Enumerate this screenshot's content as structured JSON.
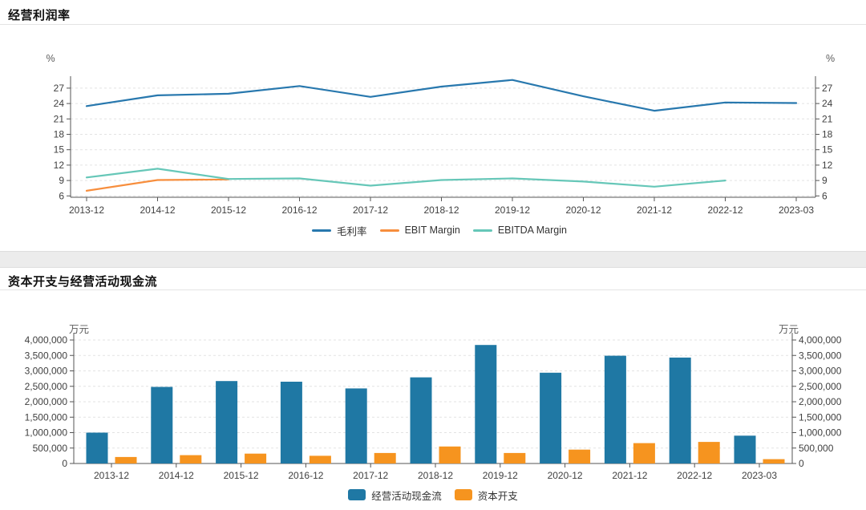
{
  "chart_data": [
    {
      "type": "line",
      "title": "经营利润率",
      "unit_left": "%",
      "unit_right": "%",
      "categories": [
        "2013-12",
        "2014-12",
        "2015-12",
        "2016-12",
        "2017-12",
        "2018-12",
        "2019-12",
        "2020-12",
        "2021-12",
        "2022-12",
        "2023-03"
      ],
      "series": [
        {
          "key": "gross-margin",
          "name": "毛利率",
          "color": "#2878ae",
          "values": [
            23.5,
            25.6,
            25.9,
            27.4,
            25.3,
            27.3,
            28.6,
            25.4,
            22.6,
            24.2,
            24.1
          ]
        },
        {
          "key": "ebit-margin",
          "name": "EBIT Margin",
          "color": "#f78e3d",
          "values": [
            7.0,
            9.1,
            9.2,
            null,
            null,
            null,
            null,
            null,
            null,
            null,
            null
          ]
        },
        {
          "key": "ebitda-margin",
          "name": "EBITDA Margin",
          "color": "#66c7b8",
          "values": [
            9.6,
            11.3,
            9.3,
            9.4,
            8.0,
            9.1,
            9.4,
            8.8,
            7.8,
            9.0,
            null
          ]
        }
      ],
      "ylim": [
        6,
        29.5
      ],
      "yticks": [
        6,
        9,
        12,
        15,
        18,
        21,
        24,
        27
      ],
      "grid": true,
      "grid_style": "dashed",
      "legend_position": "bottom",
      "dual_value_axis": true
    },
    {
      "type": "bar",
      "title": "资本开支与经营活动现金流",
      "unit_left": "万元",
      "unit_right": "万元",
      "categories": [
        "2013-12",
        "2014-12",
        "2015-12",
        "2016-12",
        "2017-12",
        "2018-12",
        "2019-12",
        "2020-12",
        "2021-12",
        "2022-12",
        "2023-03"
      ],
      "series": [
        {
          "key": "operating-cashflow",
          "name": "经营活动现金流",
          "color": "#1f78a4",
          "values": [
            1000000,
            2480000,
            2670000,
            2650000,
            2430000,
            2790000,
            3840000,
            2940000,
            3490000,
            3430000,
            900000
          ]
        },
        {
          "key": "capex",
          "name": "资本开支",
          "color": "#f6941f",
          "values": [
            210000,
            270000,
            320000,
            250000,
            340000,
            550000,
            340000,
            450000,
            660000,
            700000,
            140000
          ]
        }
      ],
      "ylim": [
        0,
        4000000
      ],
      "yticks": [
        0,
        500000,
        1000000,
        1500000,
        2000000,
        2500000,
        3000000,
        3500000,
        4000000
      ],
      "grid": true,
      "grid_style": "dashed",
      "legend_position": "bottom",
      "dual_value_axis": true
    }
  ]
}
